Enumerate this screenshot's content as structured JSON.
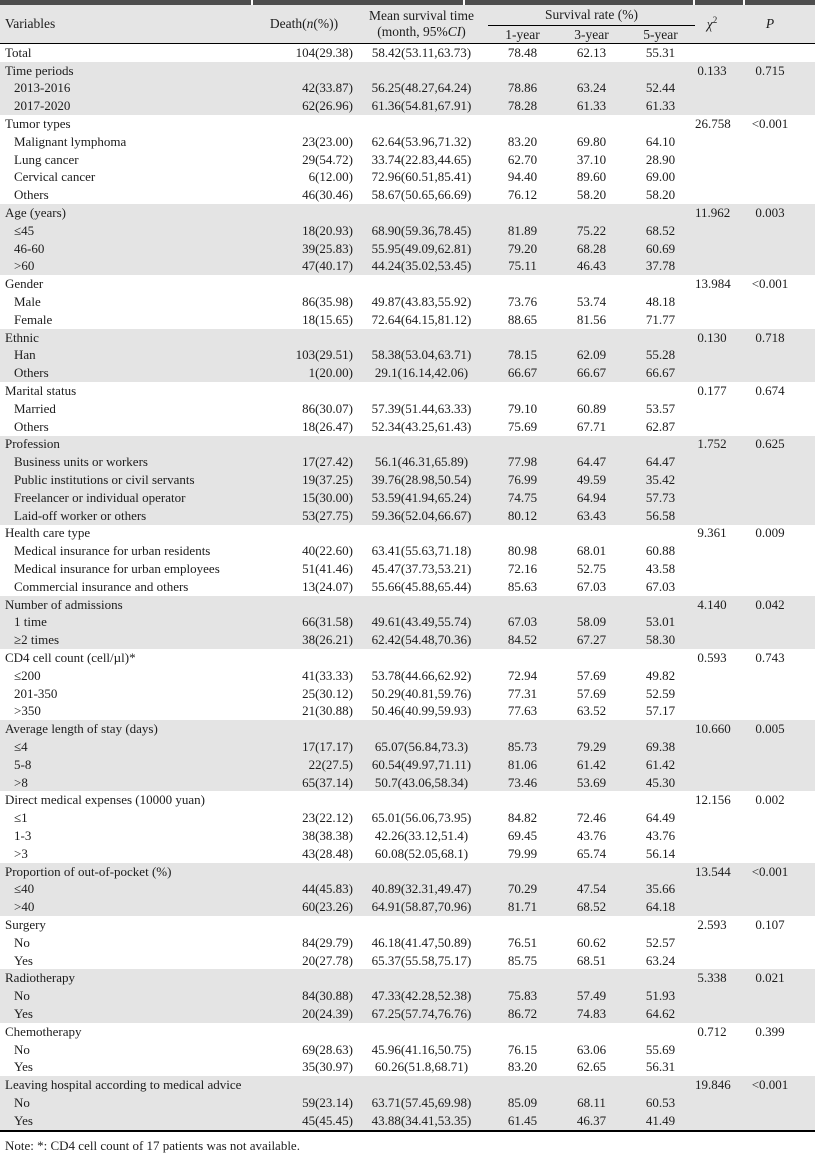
{
  "colors": {
    "top_bar": "#4d4d4d",
    "header_bg": "#e5e5e5",
    "row_shade": "#e4e4e4",
    "text": "#1c1c1c"
  },
  "note": "Note: *: CD4 cell count of 17 patients was not available.",
  "table": {
    "header": {
      "variables": "Variables",
      "death_prefix": "Death(",
      "death_n": "n",
      "death_suffix": "(%))",
      "mean_line1": "Mean survival time",
      "mean_line2_prefix": "(month, 95%",
      "mean_line2_ci": "CI",
      "mean_line2_suffix": ")",
      "survival_rate": "Survival rate (%)",
      "col_1year": "1-year",
      "col_3year": "3-year",
      "col_5year": "5-year",
      "chi_symbol": "χ",
      "chi_sup": "2",
      "p": "P"
    },
    "rows": [
      {
        "label": "Total",
        "indent": false,
        "shade": false,
        "death": "104(29.38)",
        "mst": "58.42(53.11,63.73)",
        "y1": "78.48",
        "y3": "62.13",
        "y5": "55.31",
        "chi": "",
        "p": ""
      },
      {
        "label": "Time periods",
        "indent": false,
        "shade": true,
        "death": "",
        "mst": "",
        "y1": "",
        "y3": "",
        "y5": "",
        "chi": "0.133",
        "p": "0.715"
      },
      {
        "label": "2013-2016",
        "indent": true,
        "shade": true,
        "death": "42(33.87)",
        "mst": "56.25(48.27,64.24)",
        "y1": "78.86",
        "y3": "63.24",
        "y5": "52.44",
        "chi": "",
        "p": ""
      },
      {
        "label": "2017-2020",
        "indent": true,
        "shade": true,
        "death": "62(26.96)",
        "mst": "61.36(54.81,67.91)",
        "y1": "78.28",
        "y3": "61.33",
        "y5": "61.33",
        "chi": "",
        "p": ""
      },
      {
        "label": "Tumor types",
        "indent": false,
        "shade": false,
        "death": "",
        "mst": "",
        "y1": "",
        "y3": "",
        "y5": "",
        "chi": "26.758",
        "p": "<0.001"
      },
      {
        "label": "Malignant lymphoma",
        "indent": true,
        "shade": false,
        "death": "23(23.00)",
        "mst": "62.64(53.96,71.32)",
        "y1": "83.20",
        "y3": "69.80",
        "y5": "64.10",
        "chi": "",
        "p": ""
      },
      {
        "label": "Lung cancer",
        "indent": true,
        "shade": false,
        "death": "29(54.72)",
        "mst": "33.74(22.83,44.65)",
        "y1": "62.70",
        "y3": "37.10",
        "y5": "28.90",
        "chi": "",
        "p": ""
      },
      {
        "label": "Cervical cancer",
        "indent": true,
        "shade": false,
        "death": "6(12.00)",
        "mst": "72.96(60.51,85.41)",
        "y1": "94.40",
        "y3": "89.60",
        "y5": "69.00",
        "chi": "",
        "p": ""
      },
      {
        "label": "Others",
        "indent": true,
        "shade": false,
        "death": "46(30.46)",
        "mst": "58.67(50.65,66.69)",
        "y1": "76.12",
        "y3": "58.20",
        "y5": "58.20",
        "chi": "",
        "p": ""
      },
      {
        "label": "Age (years)",
        "indent": false,
        "shade": true,
        "death": "",
        "mst": "",
        "y1": "",
        "y3": "",
        "y5": "",
        "chi": "11.962",
        "p": "0.003"
      },
      {
        "label": "≤45",
        "indent": true,
        "shade": true,
        "death": "18(20.93)",
        "mst": "68.90(59.36,78.45)",
        "y1": "81.89",
        "y3": "75.22",
        "y5": "68.52",
        "chi": "",
        "p": ""
      },
      {
        "label": "46-60",
        "indent": true,
        "shade": true,
        "death": "39(25.83)",
        "mst": "55.95(49.09,62.81)",
        "y1": "79.20",
        "y3": "68.28",
        "y5": "60.69",
        "chi": "",
        "p": ""
      },
      {
        "label": ">60",
        "indent": true,
        "shade": true,
        "death": "47(40.17)",
        "mst": "44.24(35.02,53.45)",
        "y1": "75.11",
        "y3": "46.43",
        "y5": "37.78",
        "chi": "",
        "p": ""
      },
      {
        "label": "Gender",
        "indent": false,
        "shade": false,
        "death": "",
        "mst": "",
        "y1": "",
        "y3": "",
        "y5": "",
        "chi": "13.984",
        "p": "<0.001"
      },
      {
        "label": "Male",
        "indent": true,
        "shade": false,
        "death": "86(35.98)",
        "mst": "49.87(43.83,55.92)",
        "y1": "73.76",
        "y3": "53.74",
        "y5": "48.18",
        "chi": "",
        "p": ""
      },
      {
        "label": "Female",
        "indent": true,
        "shade": false,
        "death": "18(15.65)",
        "mst": "72.64(64.15,81.12)",
        "y1": "88.65",
        "y3": "81.56",
        "y5": "71.77",
        "chi": "",
        "p": ""
      },
      {
        "label": "Ethnic",
        "indent": false,
        "shade": true,
        "death": "",
        "mst": "",
        "y1": "",
        "y3": "",
        "y5": "",
        "chi": "0.130",
        "p": "0.718"
      },
      {
        "label": "Han",
        "indent": true,
        "shade": true,
        "death": "103(29.51)",
        "mst": "58.38(53.04,63.71)",
        "y1": "78.15",
        "y3": "62.09",
        "y5": "55.28",
        "chi": "",
        "p": ""
      },
      {
        "label": "Others",
        "indent": true,
        "shade": true,
        "death": "1(20.00)",
        "mst": "29.1(16.14,42.06)",
        "y1": "66.67",
        "y3": "66.67",
        "y5": "66.67",
        "chi": "",
        "p": ""
      },
      {
        "label": "Marital status",
        "indent": false,
        "shade": false,
        "death": "",
        "mst": "",
        "y1": "",
        "y3": "",
        "y5": "",
        "chi": "0.177",
        "p": "0.674"
      },
      {
        "label": "Married",
        "indent": true,
        "shade": false,
        "death": "86(30.07)",
        "mst": "57.39(51.44,63.33)",
        "y1": "79.10",
        "y3": "60.89",
        "y5": "53.57",
        "chi": "",
        "p": ""
      },
      {
        "label": "Others",
        "indent": true,
        "shade": false,
        "death": "18(26.47)",
        "mst": "52.34(43.25,61.43)",
        "y1": "75.69",
        "y3": "67.71",
        "y5": "62.87",
        "chi": "",
        "p": ""
      },
      {
        "label": "Profession",
        "indent": false,
        "shade": true,
        "death": "",
        "mst": "",
        "y1": "",
        "y3": "",
        "y5": "",
        "chi": "1.752",
        "p": "0.625"
      },
      {
        "label": "Business units or workers",
        "indent": true,
        "shade": true,
        "death": "17(27.42)",
        "mst": "56.1(46.31,65.89)",
        "y1": "77.98",
        "y3": "64.47",
        "y5": "64.47",
        "chi": "",
        "p": ""
      },
      {
        "label": "Public institutions or civil servants",
        "indent": true,
        "shade": true,
        "death": "19(37.25)",
        "mst": "39.76(28.98,50.54)",
        "y1": "76.99",
        "y3": "49.59",
        "y5": "35.42",
        "chi": "",
        "p": ""
      },
      {
        "label": "Freelancer or individual operator",
        "indent": true,
        "shade": true,
        "death": "15(30.00)",
        "mst": "53.59(41.94,65.24)",
        "y1": "74.75",
        "y3": "64.94",
        "y5": "57.73",
        "chi": "",
        "p": ""
      },
      {
        "label": "Laid-off worker or others",
        "indent": true,
        "shade": true,
        "death": "53(27.75)",
        "mst": "59.36(52.04,66.67)",
        "y1": "80.12",
        "y3": "63.43",
        "y5": "56.58",
        "chi": "",
        "p": ""
      },
      {
        "label": "Health care type",
        "indent": false,
        "shade": false,
        "death": "",
        "mst": "",
        "y1": "",
        "y3": "",
        "y5": "",
        "chi": "9.361",
        "p": "0.009"
      },
      {
        "label": "Medical insurance for urban residents",
        "indent": true,
        "shade": false,
        "death": "40(22.60)",
        "mst": "63.41(55.63,71.18)",
        "y1": "80.98",
        "y3": "68.01",
        "y5": "60.88",
        "chi": "",
        "p": ""
      },
      {
        "label": "Medical insurance for urban employees",
        "indent": true,
        "shade": false,
        "death": "51(41.46)",
        "mst": "45.47(37.73,53.21)",
        "y1": "72.16",
        "y3": "52.75",
        "y5": "43.58",
        "chi": "",
        "p": ""
      },
      {
        "label": "Commercial insurance and others",
        "indent": true,
        "shade": false,
        "death": "13(24.07)",
        "mst": "55.66(45.88,65.44)",
        "y1": "85.63",
        "y3": "67.03",
        "y5": "67.03",
        "chi": "",
        "p": ""
      },
      {
        "label": "Number of admissions",
        "indent": false,
        "shade": true,
        "death": "",
        "mst": "",
        "y1": "",
        "y3": "",
        "y5": "",
        "chi": "4.140",
        "p": "0.042"
      },
      {
        "label": "1 time",
        "indent": true,
        "shade": true,
        "death": "66(31.58)",
        "mst": "49.61(43.49,55.74)",
        "y1": "67.03",
        "y3": "58.09",
        "y5": "53.01",
        "chi": "",
        "p": ""
      },
      {
        "label": "≥2 times",
        "indent": true,
        "shade": true,
        "death": "38(26.21)",
        "mst": "62.42(54.48,70.36)",
        "y1": "84.52",
        "y3": "67.27",
        "y5": "58.30",
        "chi": "",
        "p": ""
      },
      {
        "label": "CD4 cell count (cell/µl)*",
        "indent": false,
        "shade": false,
        "death": "",
        "mst": "",
        "y1": "",
        "y3": "",
        "y5": "",
        "chi": "0.593",
        "p": "0.743"
      },
      {
        "label": "≤200",
        "indent": true,
        "shade": false,
        "death": "41(33.33)",
        "mst": "53.78(44.66,62.92)",
        "y1": "72.94",
        "y3": "57.69",
        "y5": "49.82",
        "chi": "",
        "p": ""
      },
      {
        "label": "201-350",
        "indent": true,
        "shade": false,
        "death": "25(30.12)",
        "mst": "50.29(40.81,59.76)",
        "y1": "77.31",
        "y3": "57.69",
        "y5": "52.59",
        "chi": "",
        "p": ""
      },
      {
        "label": ">350",
        "indent": true,
        "shade": false,
        "death": "21(30.88)",
        "mst": "50.46(40.99,59.93)",
        "y1": "77.63",
        "y3": "63.52",
        "y5": "57.17",
        "chi": "",
        "p": ""
      },
      {
        "label": "Average length of stay (days)",
        "indent": false,
        "shade": true,
        "death": "",
        "mst": "",
        "y1": "",
        "y3": "",
        "y5": "",
        "chi": "10.660",
        "p": "0.005"
      },
      {
        "label": "≤4",
        "indent": true,
        "shade": true,
        "death": "17(17.17)",
        "mst": "65.07(56.84,73.3)",
        "y1": "85.73",
        "y3": "79.29",
        "y5": "69.38",
        "chi": "",
        "p": ""
      },
      {
        "label": "5-8",
        "indent": true,
        "shade": true,
        "death": "22(27.5)",
        "mst": "60.54(49.97,71.11)",
        "y1": "81.06",
        "y3": "61.42",
        "y5": "61.42",
        "chi": "",
        "p": ""
      },
      {
        "label": ">8",
        "indent": true,
        "shade": true,
        "death": "65(37.14)",
        "mst": "50.7(43.06,58.34)",
        "y1": "73.46",
        "y3": "53.69",
        "y5": "45.30",
        "chi": "",
        "p": ""
      },
      {
        "label": "Direct medical expenses (10000 yuan)",
        "indent": false,
        "shade": false,
        "death": "",
        "mst": "",
        "y1": "",
        "y3": "",
        "y5": "",
        "chi": "12.156",
        "p": "0.002"
      },
      {
        "label": "≤1",
        "indent": true,
        "shade": false,
        "death": "23(22.12)",
        "mst": "65.01(56.06,73.95)",
        "y1": "84.82",
        "y3": "72.46",
        "y5": "64.49",
        "chi": "",
        "p": ""
      },
      {
        "label": "1-3",
        "indent": true,
        "shade": false,
        "death": "38(38.38)",
        "mst": "42.26(33.12,51.4)",
        "y1": "69.45",
        "y3": "43.76",
        "y5": "43.76",
        "chi": "",
        "p": ""
      },
      {
        "label": ">3",
        "indent": true,
        "shade": false,
        "death": "43(28.48)",
        "mst": "60.08(52.05,68.1)",
        "y1": "79.99",
        "y3": "65.74",
        "y5": "56.14",
        "chi": "",
        "p": ""
      },
      {
        "label": "Proportion of out-of-pocket (%)",
        "indent": false,
        "shade": true,
        "death": "",
        "mst": "",
        "y1": "",
        "y3": "",
        "y5": "",
        "chi": "13.544",
        "p": "<0.001"
      },
      {
        "label": "≤40",
        "indent": true,
        "shade": true,
        "death": "44(45.83)",
        "mst": "40.89(32.31,49.47)",
        "y1": "70.29",
        "y3": "47.54",
        "y5": "35.66",
        "chi": "",
        "p": ""
      },
      {
        "label": ">40",
        "indent": true,
        "shade": true,
        "death": "60(23.26)",
        "mst": "64.91(58.87,70.96)",
        "y1": "81.71",
        "y3": "68.52",
        "y5": "64.18",
        "chi": "",
        "p": ""
      },
      {
        "label": "Surgery",
        "indent": false,
        "shade": false,
        "death": "",
        "mst": "",
        "y1": "",
        "y3": "",
        "y5": "",
        "chi": "2.593",
        "p": "0.107"
      },
      {
        "label": "No",
        "indent": true,
        "shade": false,
        "death": "84(29.79)",
        "mst": "46.18(41.47,50.89)",
        "y1": "76.51",
        "y3": "60.62",
        "y5": "52.57",
        "chi": "",
        "p": ""
      },
      {
        "label": "Yes",
        "indent": true,
        "shade": false,
        "death": "20(27.78)",
        "mst": "65.37(55.58,75.17)",
        "y1": "85.75",
        "y3": "68.51",
        "y5": "63.24",
        "chi": "",
        "p": ""
      },
      {
        "label": "Radiotherapy",
        "indent": false,
        "shade": true,
        "death": "",
        "mst": "",
        "y1": "",
        "y3": "",
        "y5": "",
        "chi": "5.338",
        "p": "0.021"
      },
      {
        "label": "No",
        "indent": true,
        "shade": true,
        "death": "84(30.88)",
        "mst": "47.33(42.28,52.38)",
        "y1": "75.83",
        "y3": "57.49",
        "y5": "51.93",
        "chi": "",
        "p": ""
      },
      {
        "label": "Yes",
        "indent": true,
        "shade": true,
        "death": "20(24.39)",
        "mst": "67.25(57.74,76.76)",
        "y1": "86.72",
        "y3": "74.83",
        "y5": "64.62",
        "chi": "",
        "p": ""
      },
      {
        "label": "Chemotherapy",
        "indent": false,
        "shade": false,
        "death": "",
        "mst": "",
        "y1": "",
        "y3": "",
        "y5": "",
        "chi": "0.712",
        "p": "0.399"
      },
      {
        "label": "No",
        "indent": true,
        "shade": false,
        "death": "69(28.63)",
        "mst": "45.96(41.16,50.75)",
        "y1": "76.15",
        "y3": "63.06",
        "y5": "55.69",
        "chi": "",
        "p": ""
      },
      {
        "label": "Yes",
        "indent": true,
        "shade": false,
        "death": "35(30.97)",
        "mst": "60.26(51.8,68.71)",
        "y1": "83.20",
        "y3": "62.65",
        "y5": "56.31",
        "chi": "",
        "p": ""
      },
      {
        "label": "Leaving hospital according to medical advice",
        "indent": false,
        "shade": true,
        "death": "",
        "mst": "",
        "y1": "",
        "y3": "",
        "y5": "",
        "chi": "19.846",
        "p": "<0.001"
      },
      {
        "label": "No",
        "indent": true,
        "shade": true,
        "death": "59(23.14)",
        "mst": "63.71(57.45,69.98)",
        "y1": "85.09",
        "y3": "68.11",
        "y5": "60.53",
        "chi": "",
        "p": ""
      },
      {
        "label": "Yes",
        "indent": true,
        "shade": true,
        "death": "45(45.45)",
        "mst": "43.88(34.41,53.35)",
        "y1": "61.45",
        "y3": "46.37",
        "y5": "41.49",
        "chi": "",
        "p": ""
      }
    ]
  }
}
